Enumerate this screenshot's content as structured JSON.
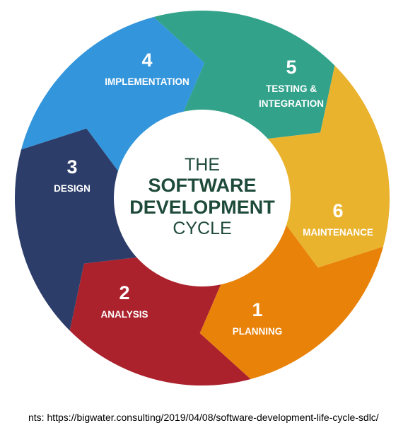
{
  "center": {
    "line1": "THE",
    "line2": "SOFTWARE",
    "line3": "DEVELOPMENT",
    "line4": "CYCLE"
  },
  "segments": [
    {
      "number": "1",
      "label_lines": [
        "PLANNING"
      ],
      "color": "#ab222d"
    },
    {
      "number": "2",
      "label_lines": [
        "ANALYSIS"
      ],
      "color": "#2c3d6a"
    },
    {
      "number": "3",
      "label_lines": [
        "DESIGN"
      ],
      "color": "#3395db"
    },
    {
      "number": "4",
      "label_lines": [
        "IMPLEMENTATION"
      ],
      "color": "#32a28b"
    },
    {
      "number": "5",
      "label_lines": [
        "TESTING &",
        "INTEGRATION"
      ],
      "color": "#eab32e"
    },
    {
      "number": "6",
      "label_lines": [
        "MAINTENANCE"
      ],
      "color": "#e98209"
    }
  ],
  "source_text": "nts: https://bigwater.consulting/2019/04/08/software-development-life-cycle-sdlc/"
}
